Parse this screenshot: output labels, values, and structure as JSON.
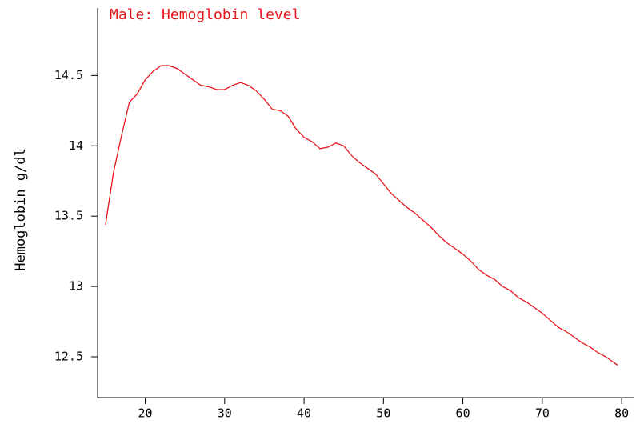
{
  "chart_data": {
    "type": "line",
    "title": "Male: Hemoglobin level",
    "y_label": "Hemoglobin g/dl",
    "x": [
      15,
      16,
      17,
      18,
      19,
      20,
      21,
      22,
      23,
      24,
      25,
      26,
      27,
      28,
      29,
      30,
      31,
      32,
      33,
      34,
      35,
      36,
      37,
      38,
      39,
      40,
      41,
      42,
      43,
      44,
      45,
      46,
      47,
      48,
      49,
      50,
      51,
      52,
      53,
      54,
      55,
      56,
      57,
      58,
      59,
      60,
      61,
      62,
      63,
      64,
      65,
      66,
      67,
      68,
      69,
      70,
      71,
      72,
      73,
      74,
      75,
      76,
      77,
      78,
      79,
      79.5
    ],
    "series": [
      {
        "name": "Male",
        "color": "#e8161b",
        "values": [
          13.44,
          13.81,
          14.07,
          14.31,
          14.37,
          14.47,
          14.53,
          14.57,
          14.57,
          14.55,
          14.51,
          14.47,
          14.43,
          14.42,
          14.4,
          14.4,
          14.43,
          14.45,
          14.43,
          14.39,
          14.33,
          14.26,
          14.25,
          14.21,
          14.12,
          14.06,
          14.03,
          13.98,
          13.99,
          14.02,
          14.0,
          13.93,
          13.88,
          13.84,
          13.8,
          13.73,
          13.66,
          13.61,
          13.56,
          13.52,
          13.47,
          13.42,
          13.36,
          13.31,
          13.27,
          13.23,
          13.18,
          13.12,
          13.08,
          13.05,
          13.0,
          12.97,
          12.92,
          12.89,
          12.85,
          12.81,
          12.76,
          12.71,
          12.68,
          12.64,
          12.6,
          12.57,
          12.53,
          12.5,
          12.46,
          12.44
        ]
      }
    ],
    "xlim": [
      14,
      81.5
    ],
    "xticks": [
      20,
      30,
      40,
      50,
      60,
      70,
      80
    ],
    "ylim": [
      12.21,
      14.98
    ],
    "yticks": [
      12.5,
      13,
      13.5,
      14,
      14.5
    ],
    "grid": false
  }
}
